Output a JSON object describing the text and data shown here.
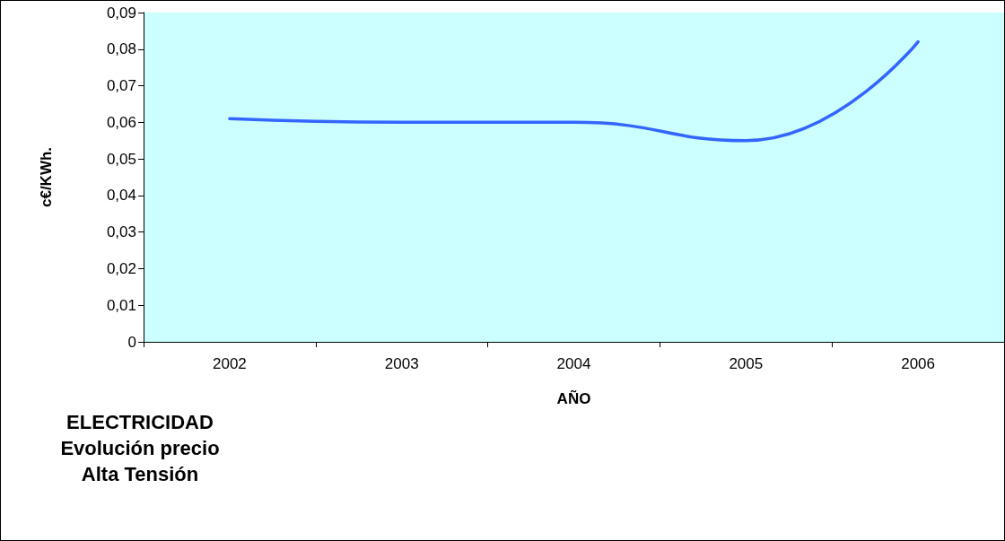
{
  "chart_data": {
    "type": "line",
    "title": "ELECTRICIDAD\nEvolución precio\nAlta Tensión",
    "xlabel": "AÑO",
    "ylabel": "c€/KWh.",
    "categories": [
      "2002",
      "2003",
      "2004",
      "2005",
      "2006"
    ],
    "series": [
      {
        "color": "#3366ff",
        "values": [
          0.061,
          0.06,
          0.06,
          0.055,
          0.082
        ]
      }
    ],
    "ylim": [
      0,
      0.09
    ],
    "yticks": [
      0,
      {
        "value": 0.01,
        "label": "0,01"
      },
      {
        "value": 0.02,
        "label": "0,02"
      },
      {
        "value": 0.03,
        "label": "0,03"
      },
      {
        "value": 0.04,
        "label": "0,04"
      },
      {
        "value": 0.05,
        "label": "0,05"
      },
      {
        "value": 0.06,
        "label": "0,06"
      },
      {
        "value": 0.07,
        "label": "0,07"
      },
      {
        "value": 0.08,
        "label": "0,08"
      },
      {
        "value": 0.09,
        "label": "0,09"
      }
    ],
    "grid": false,
    "marker": "none",
    "line_style": "solid"
  }
}
